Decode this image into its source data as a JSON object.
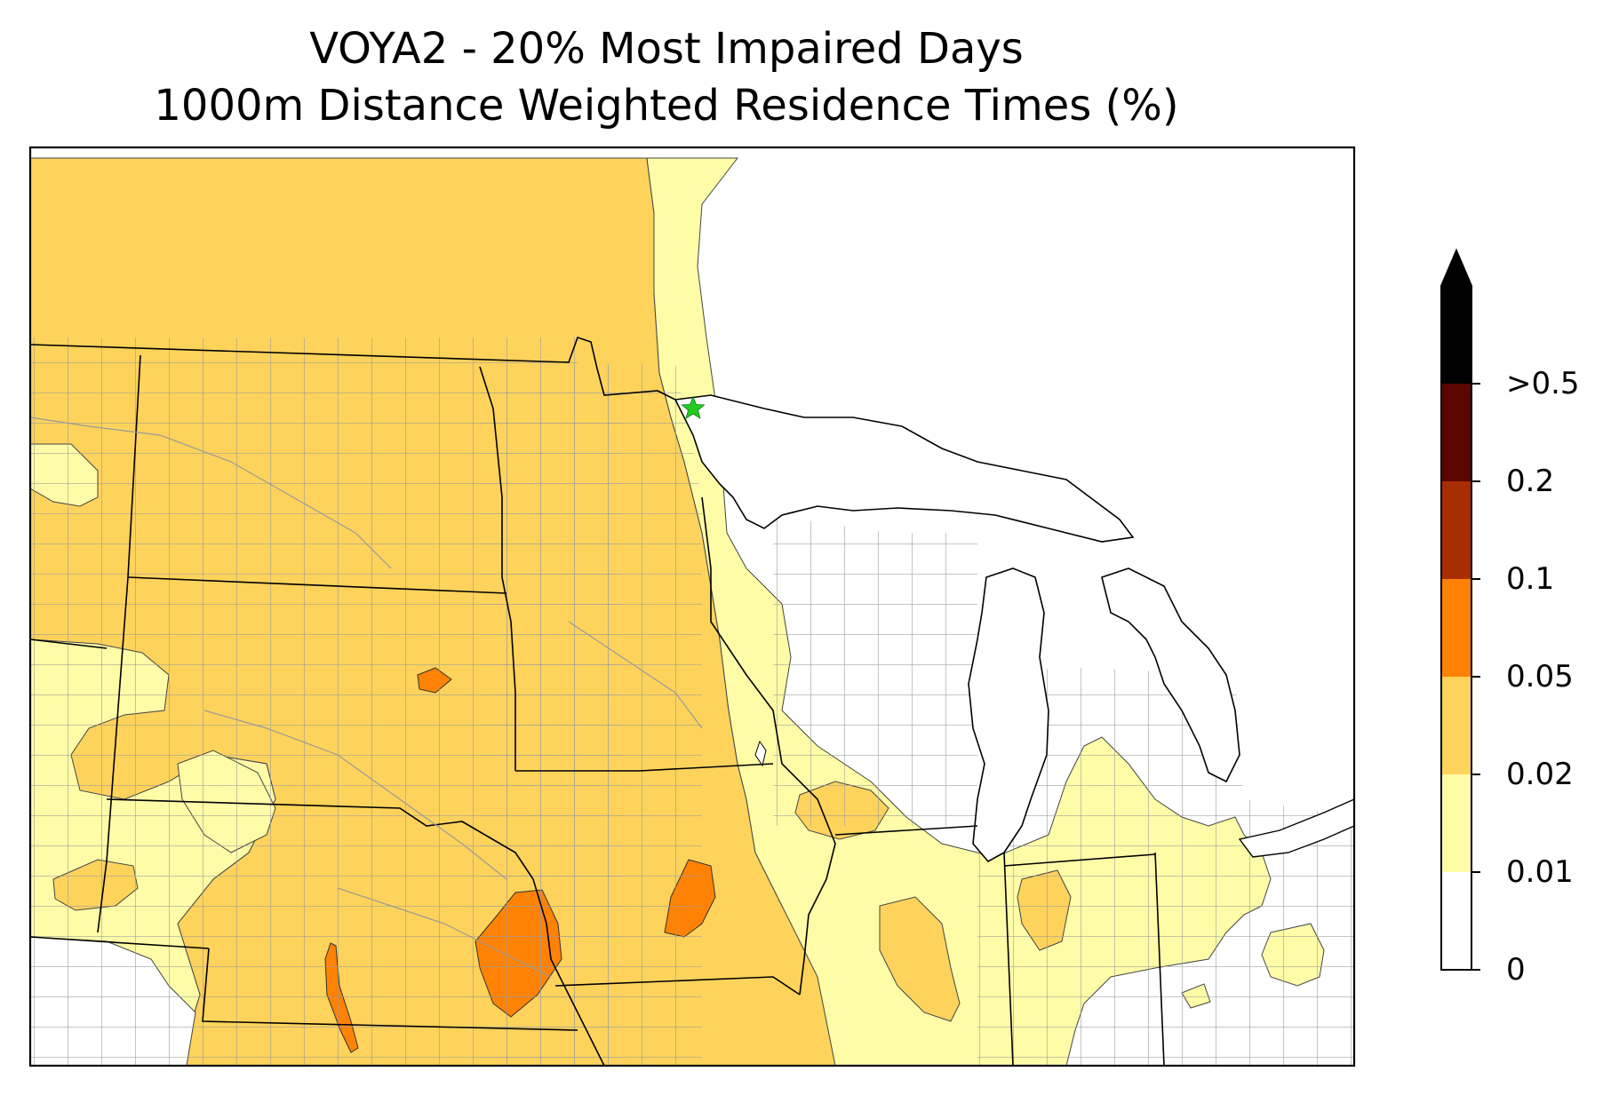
{
  "title": {
    "line1": "VOYA2 - 20% Most Impaired Days",
    "line2": "1000m Distance Weighted Residence Times (%)"
  },
  "colorbar": {
    "extend": "max",
    "tick_labels": [
      "0",
      "0.01",
      "0.02",
      "0.05",
      "0.1",
      "0.2",
      ">0.5"
    ],
    "bins": [
      {
        "from": "0",
        "to": "0.01",
        "color": "#ffffff"
      },
      {
        "from": "0.01",
        "to": "0.02",
        "color": "#fffca8"
      },
      {
        "from": "0.02",
        "to": "0.05",
        "color": "#fdd35c"
      },
      {
        "from": "0.05",
        "to": "0.1",
        "color": "#ff8205"
      },
      {
        "from": "0.1",
        "to": "0.2",
        "color": "#a82d00"
      },
      {
        "from": "0.2",
        "to": "0.5",
        "color": "#5b0500"
      },
      {
        "from": "0.5",
        "to": "max",
        "color": "#000000"
      }
    ]
  },
  "map": {
    "site_marker": {
      "name": "VOYA2",
      "shape": "star",
      "color": "#22cc22"
    },
    "lake_color": "#ffffff",
    "county_line_color": "#9a9a9a",
    "state_line_color": "#000000"
  }
}
